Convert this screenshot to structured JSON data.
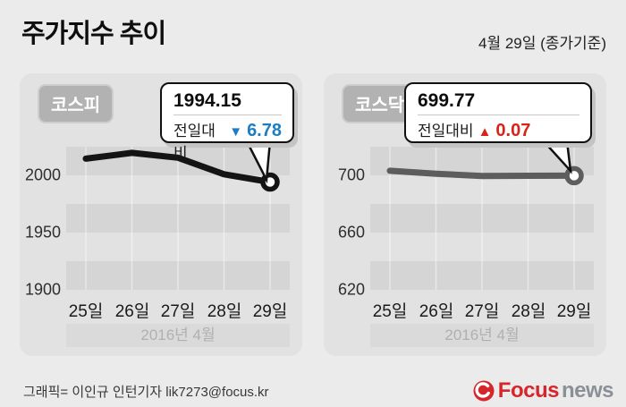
{
  "header": {
    "title": "주가지수 추이",
    "date_note": "4월 29일 (종가기준)"
  },
  "kospi": {
    "badge": "코스피",
    "callout": {
      "value": "1994.15",
      "change_label": "전일대비",
      "arrow": "▼",
      "change": "6.78",
      "change_color": "#1d7dc4"
    },
    "yticks": [
      "2000",
      "1950",
      "1900"
    ],
    "xticks": [
      "25일",
      "26일",
      "27일",
      "28일",
      "29일"
    ],
    "period": "2016년  4월"
  },
  "kosdaq": {
    "badge": "코스닥",
    "callout": {
      "value": "699.77",
      "change_label": "전일대비",
      "arrow": "▲",
      "change": "0.07",
      "change_color": "#d92317"
    },
    "yticks": [
      "700",
      "660",
      "620"
    ],
    "xticks": [
      "25일",
      "26일",
      "27일",
      "28일",
      "29일"
    ],
    "period": "2016년  4월"
  },
  "chart_data": [
    {
      "type": "line",
      "name": "코스피",
      "categories": [
        "25일",
        "26일",
        "27일",
        "28일",
        "29일"
      ],
      "values": [
        2014.55,
        2019.63,
        2015.4,
        2000.93,
        1994.15
      ],
      "ylim": [
        1900,
        2025
      ],
      "yticks": [
        2000,
        1950,
        1900
      ],
      "line_color": "#141414",
      "period_label": "2016년 4월",
      "last_point": {
        "value": 1994.15,
        "change": -6.78
      }
    },
    {
      "type": "line",
      "name": "코스닥",
      "categories": [
        "25일",
        "26일",
        "27일",
        "28일",
        "29일"
      ],
      "values": [
        703.18,
        701.08,
        699.59,
        699.7,
        699.77
      ],
      "ylim": [
        620,
        720
      ],
      "yticks": [
        700,
        660,
        620
      ],
      "line_color": "#5d5d5d",
      "period_label": "2016년 4월",
      "last_point": {
        "value": 699.77,
        "change": 0.07
      }
    }
  ],
  "colors": {
    "down_blue": "#1d7dc4",
    "up_red": "#d92317",
    "kospi_line": "#141414",
    "kosdaq_line": "#5d5d5d",
    "page_bg": "#ebebeb",
    "panel_bg": "#e2e2e2",
    "stripe_dark": "#d5d5d5",
    "badge_bg": "#b2b2b2"
  },
  "footer": {
    "credit": "그래픽= 이인규 인턴기자 lik7273@focus.kr",
    "logo": {
      "brand_bold": "Focus",
      "brand_light": "news"
    }
  }
}
